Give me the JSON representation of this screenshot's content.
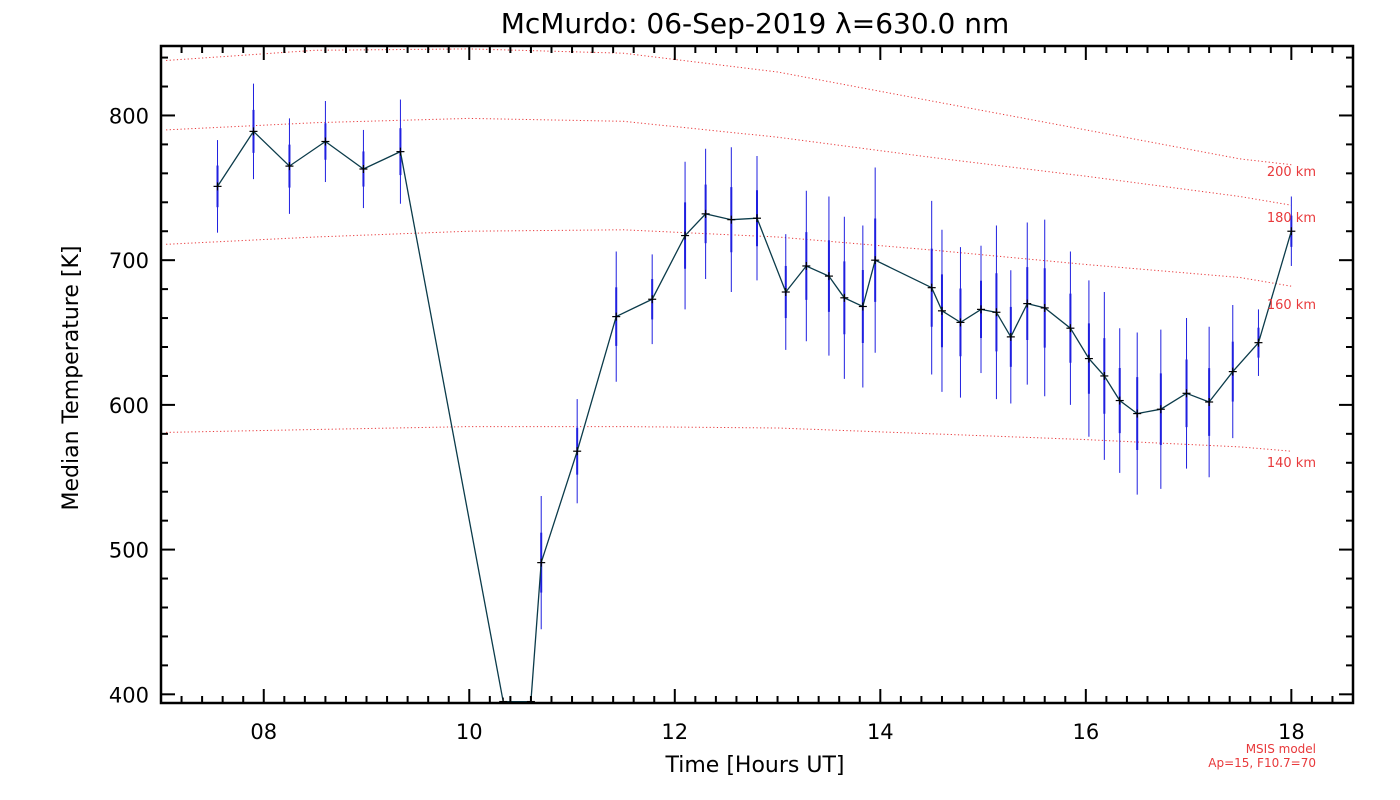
{
  "chart_data": {
    "type": "line",
    "title": "McMurdo: 06-Sep-2019 λ=630.0 nm",
    "xlabel": "Time [Hours UT]",
    "ylabel": "Median Temperature [K]",
    "xlim": [
      7.0,
      18.6
    ],
    "ylim": [
      394,
      848
    ],
    "x_ticks": [
      8,
      10,
      12,
      14,
      16,
      18
    ],
    "x_tick_labels": [
      "08",
      "10",
      "12",
      "14",
      "16",
      "18"
    ],
    "y_ticks": [
      400,
      500,
      600,
      700,
      800
    ],
    "y_tick_labels": [
      "400",
      "500",
      "600",
      "700",
      "800"
    ],
    "series": [
      {
        "name": "Median Temperature",
        "color": "#0b3b4a",
        "errorbar_color": "#1f1fe0",
        "marker": "plus",
        "x": [
          7.55,
          7.9,
          8.25,
          8.6,
          8.97,
          9.33,
          10.33,
          10.6,
          10.7,
          11.05,
          11.43,
          11.78,
          12.1,
          12.3,
          12.55,
          12.8,
          13.08,
          13.28,
          13.5,
          13.65,
          13.83,
          13.95,
          14.5,
          14.6,
          14.78,
          14.98,
          15.13,
          15.27,
          15.43,
          15.6,
          15.85,
          16.03,
          16.18,
          16.33,
          16.5,
          16.73,
          16.98,
          17.2,
          17.43,
          17.68,
          18.0
        ],
        "y": [
          751,
          789,
          765,
          782,
          763,
          775,
          395,
          395,
          491,
          568,
          661,
          673,
          717,
          732,
          728,
          729,
          678,
          696,
          689,
          674,
          668,
          700,
          681,
          665,
          657,
          666,
          664,
          647,
          670,
          667,
          653,
          632,
          620,
          603,
          594,
          597,
          608,
          602,
          623,
          643,
          720
        ],
        "error": [
          32,
          33,
          33,
          28,
          27,
          36,
          null,
          null,
          46,
          36,
          45,
          31,
          51,
          45,
          50,
          43,
          40,
          52,
          55,
          56,
          56,
          64,
          60,
          56,
          52,
          44,
          60,
          46,
          56,
          61,
          53,
          54,
          58,
          50,
          56,
          55,
          52,
          52,
          46,
          23,
          24
        ]
      }
    ],
    "model_curves": [
      {
        "label": "200 km",
        "color": "#e8393b",
        "x": [
          7.05,
          8.5,
          10.0,
          11.5,
          13.0,
          14.5,
          16.0,
          17.5,
          18.0
        ],
        "y": [
          838,
          845,
          846,
          843,
          830,
          810,
          790,
          770,
          766
        ]
      },
      {
        "label": "180 km",
        "color": "#e8393b",
        "x": [
          7.05,
          8.5,
          10.0,
          11.5,
          13.0,
          14.5,
          16.0,
          17.5,
          18.0
        ],
        "y": [
          790,
          795,
          798,
          796,
          785,
          771,
          758,
          744,
          738
        ]
      },
      {
        "label": "160 km",
        "color": "#e8393b",
        "x": [
          7.05,
          8.5,
          10.0,
          11.5,
          13.0,
          14.5,
          16.0,
          17.5,
          18.0
        ],
        "y": [
          711,
          716,
          720,
          721,
          716,
          707,
          697,
          688,
          682
        ]
      },
      {
        "label": "140 km",
        "color": "#e8393b",
        "x": [
          7.05,
          8.5,
          10.0,
          11.5,
          13.0,
          14.5,
          16.0,
          17.5,
          18.0
        ],
        "y": [
          581,
          583,
          585,
          585,
          584,
          580,
          576,
          571,
          568
        ]
      }
    ],
    "model_note": [
      "MSIS model",
      "Ap=15, F10.7=70"
    ]
  }
}
